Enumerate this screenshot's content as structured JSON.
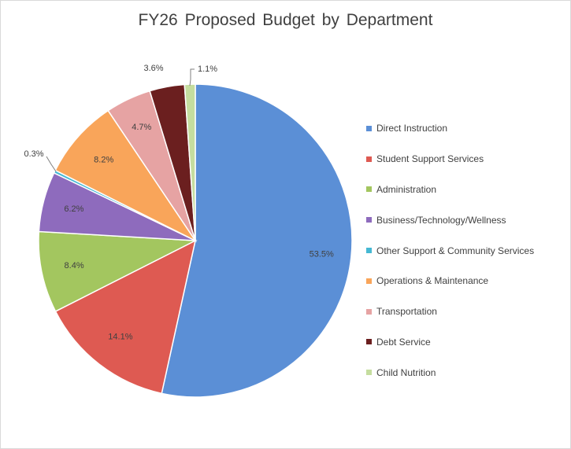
{
  "chart_data": {
    "type": "pie",
    "title": "FY26 Proposed Budget by Department",
    "labels": [
      "Direct Instruction",
      "Student Support Services",
      "Administration",
      "Business/Technology/Wellness",
      "Other Support & Community Services",
      "Operations & Maintenance",
      "Transportation",
      "Debt Service",
      "Child Nutrition"
    ],
    "values": [
      53.5,
      14.1,
      8.4,
      6.2,
      0.3,
      8.2,
      4.7,
      3.6,
      1.1
    ],
    "data_labels": [
      "53.5%",
      "14.1%",
      "8.4%",
      "6.2%",
      "0.3%",
      "8.2%",
      "4.7%",
      "3.6%",
      "1.1%"
    ],
    "colors": [
      "#5b8fd6",
      "#de5a52",
      "#a3c65f",
      "#8e6bbd",
      "#45b8d3",
      "#f9a55a",
      "#e6a3a3",
      "#6b1f1f",
      "#c5dd9f"
    ],
    "legend_position": "right",
    "start": "12 o'clock, clockwise"
  }
}
